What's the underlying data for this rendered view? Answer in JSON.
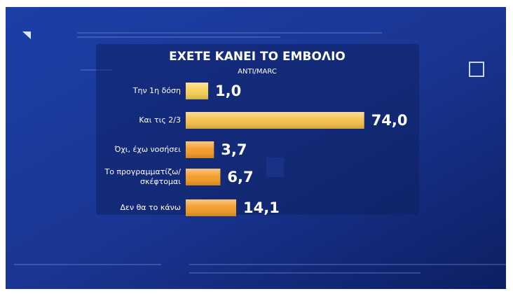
{
  "chart_data": {
    "type": "bar",
    "orientation": "horizontal",
    "title": "ΕΧΕΤΕ ΚΑΝΕΙ ΤΟ ΕΜΒΟΛΙΟ",
    "subtitle": "ANTI/MARC",
    "categories": [
      "Την 1η δόση",
      "Και τις 2/3",
      "Όχι, έχω νοσήσει",
      "Το προγραμματίζω/\nσκέφτομαι",
      "Δεν θα το κάνω"
    ],
    "values": [
      1.0,
      74.0,
      3.7,
      6.7,
      14.1
    ],
    "value_labels": [
      "1,0",
      "74,0",
      "3,7",
      "6,7",
      "14,1"
    ],
    "colors": [
      "#f6cf55",
      "#f6c04a",
      "#f49b24",
      "#f49b24",
      "#f49b24"
    ]
  }
}
